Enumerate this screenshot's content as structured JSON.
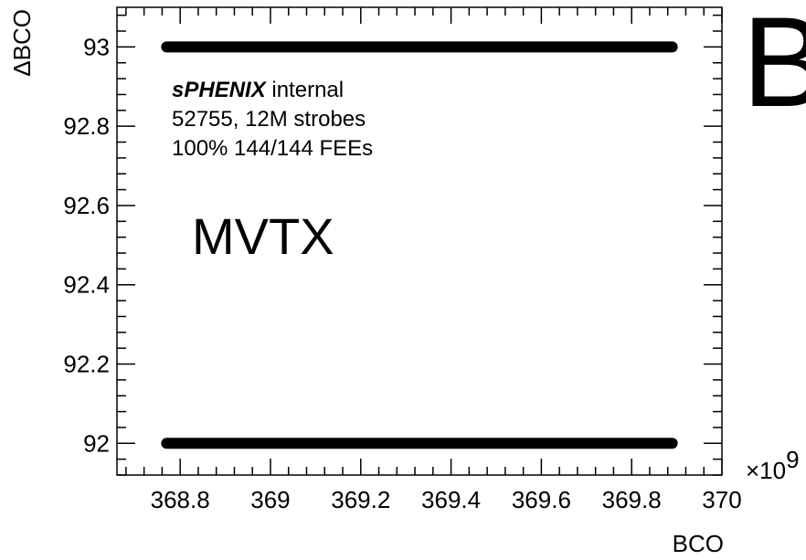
{
  "chart_data": {
    "type": "scatter",
    "xlabel": "BCO",
    "ylabel": "ΔBCO",
    "x_multiplier_label": "×10",
    "x_multiplier_exp": "9",
    "xlim": [
      368.66,
      370.0
    ],
    "ylim": [
      91.92,
      93.1
    ],
    "x_ticks": [
      368.8,
      369.0,
      369.2,
      369.4,
      369.6,
      369.8,
      370.0
    ],
    "x_tick_labels": [
      "368.8",
      "369",
      "369.2",
      "369.4",
      "369.6",
      "369.8",
      "370"
    ],
    "y_ticks": [
      92.0,
      92.2,
      92.4,
      92.6,
      92.8,
      93.0
    ],
    "y_tick_labels": [
      "92",
      "92.2",
      "92.4",
      "92.6",
      "92.8",
      "93"
    ],
    "series": [
      {
        "x_range": [
          368.77,
          369.89
        ],
        "y": 93,
        "color": "#000000"
      },
      {
        "x_range": [
          368.77,
          369.89
        ],
        "y": 92,
        "color": "#000000"
      }
    ],
    "annotations": {
      "experiment": "sPHENIX",
      "status": "internal",
      "run_info": "52755, 12M strobes",
      "fee_info": "100% 144/144 FEEs",
      "detector": "MVTX",
      "panel_letter": "B"
    }
  }
}
